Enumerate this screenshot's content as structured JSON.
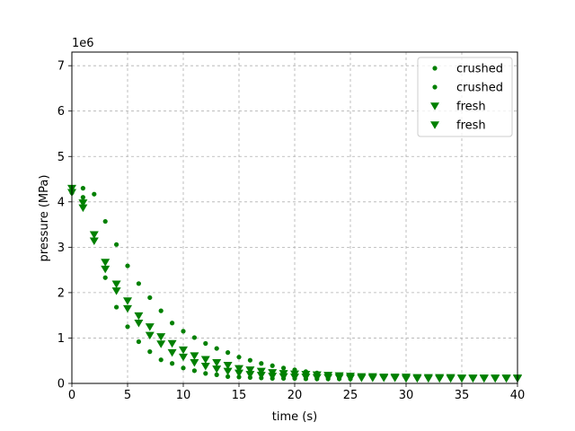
{
  "chart_data": {
    "type": "scatter",
    "title": "",
    "xlabel": "time (s)",
    "ylabel": "pressure (MPa)",
    "y_offset_label": "1e6",
    "xlim": [
      0,
      40
    ],
    "ylim": [
      0,
      7300000
    ],
    "x_ticks": [
      0,
      5,
      10,
      15,
      20,
      25,
      30,
      35,
      40
    ],
    "x_tick_labels": [
      "0",
      "5",
      "10",
      "15",
      "20",
      "25",
      "30",
      "35",
      "40"
    ],
    "y_ticks": [
      0,
      1000000,
      2000000,
      3000000,
      4000000,
      5000000,
      6000000,
      7000000
    ],
    "y_tick_labels": [
      "0",
      "1",
      "2",
      "3",
      "4",
      "5",
      "6",
      "7"
    ],
    "grid": true,
    "legend_position": "top-right",
    "series": [
      {
        "name": "crushed",
        "marker": "circle",
        "color": "#008000",
        "x": [
          0,
          1,
          2,
          3,
          4,
          5,
          6,
          7,
          8,
          9,
          10,
          11,
          12,
          13,
          14,
          15,
          16,
          17,
          18,
          19,
          20,
          21,
          22,
          23,
          24,
          25
        ],
        "y": [
          4310000,
          4300000,
          4170000,
          3570000,
          3060000,
          2590000,
          2200000,
          1890000,
          1600000,
          1330000,
          1150000,
          1010000,
          880000,
          770000,
          680000,
          580000,
          510000,
          440000,
          390000,
          340000,
          300000,
          260000,
          230000,
          200000,
          180000,
          160000
        ]
      },
      {
        "name": "crushed",
        "marker": "circle",
        "color": "#008000",
        "x": [
          0,
          1,
          2,
          3,
          4,
          5,
          6,
          7,
          8,
          9,
          10,
          11,
          12,
          13,
          14,
          15,
          16,
          17,
          18,
          19,
          20,
          21,
          22,
          23,
          24,
          25
        ],
        "y": [
          4200000,
          4100000,
          3170000,
          2330000,
          1680000,
          1250000,
          920000,
          700000,
          520000,
          440000,
          340000,
          280000,
          220000,
          190000,
          150000,
          140000,
          130000,
          120000,
          110000,
          110000,
          110000,
          100000,
          100000,
          100000,
          100000,
          100000
        ]
      },
      {
        "name": "fresh",
        "marker": "triangle-down",
        "color": "#008000",
        "x": [
          0,
          1,
          2,
          3,
          4,
          5,
          6,
          7,
          8,
          9,
          10,
          11,
          12,
          13,
          14,
          15,
          16,
          17,
          18,
          19,
          20,
          21,
          22,
          23,
          24,
          25,
          26,
          27,
          28,
          29,
          30,
          31,
          32,
          33,
          34,
          35,
          36,
          37,
          38,
          39,
          40
        ],
        "y": [
          4300000,
          3980000,
          3280000,
          2670000,
          2190000,
          1820000,
          1490000,
          1250000,
          1030000,
          880000,
          740000,
          610000,
          530000,
          460000,
          400000,
          330000,
          300000,
          270000,
          240000,
          220000,
          210000,
          200000,
          190000,
          180000,
          170000,
          160000,
          150000,
          150000,
          140000,
          140000,
          140000,
          130000,
          130000,
          130000,
          130000,
          120000,
          120000,
          120000,
          120000,
          120000,
          120000
        ]
      },
      {
        "name": "fresh",
        "marker": "triangle-down",
        "color": "#008000",
        "x": [
          0,
          1,
          2,
          3,
          4,
          5,
          6,
          7,
          8,
          9,
          10,
          11,
          12,
          13,
          14,
          15,
          16,
          17,
          18,
          19,
          20,
          21,
          22,
          23,
          24,
          25,
          26,
          27,
          28,
          29,
          30,
          31,
          32,
          33,
          34,
          35,
          36,
          37,
          38,
          39,
          40
        ],
        "y": [
          4210000,
          3870000,
          3140000,
          2520000,
          2040000,
          1650000,
          1330000,
          1060000,
          870000,
          680000,
          580000,
          460000,
          380000,
          320000,
          270000,
          230000,
          200000,
          180000,
          160000,
          150000,
          140000,
          140000,
          130000,
          130000,
          130000,
          120000,
          120000,
          120000,
          120000,
          120000,
          110000,
          110000,
          110000,
          110000,
          110000,
          110000,
          110000,
          110000,
          110000,
          110000,
          110000
        ]
      }
    ]
  }
}
